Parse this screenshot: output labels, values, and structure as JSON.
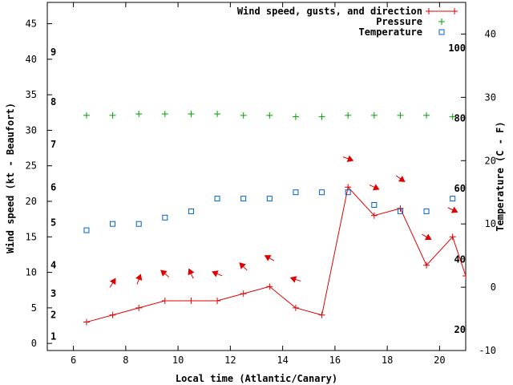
{
  "chart_data": {
    "type": "line",
    "xlabel": "Local time (Atlantic/Canary)",
    "ylabel_left": "Wind speed (kt - Beaufort)",
    "ylabel_right": "Temperature (C - F)",
    "xlim": [
      5,
      21
    ],
    "ylim_left": [
      -1,
      48
    ],
    "ylim_right": [
      -10,
      45
    ],
    "x_ticks": [
      6,
      8,
      10,
      12,
      14,
      16,
      18,
      20
    ],
    "y_left_ticks": [
      0,
      5,
      10,
      15,
      20,
      25,
      30,
      35,
      40,
      45
    ],
    "y_right_ticks": [
      -10,
      0,
      10,
      20,
      30,
      40
    ],
    "beaufort_labels": [
      {
        "label": "1",
        "kt": 1
      },
      {
        "label": "2",
        "kt": 4
      },
      {
        "label": "3",
        "kt": 7
      },
      {
        "label": "4",
        "kt": 11
      },
      {
        "label": "5",
        "kt": 17
      },
      {
        "label": "6",
        "kt": 22
      },
      {
        "label": "7",
        "kt": 28
      },
      {
        "label": "8",
        "kt": 34
      },
      {
        "label": "9",
        "kt": 41
      }
    ],
    "fahrenheit_labels": [
      {
        "label": "20",
        "celsius": -6.7
      },
      {
        "label": "40",
        "celsius": 4.4
      },
      {
        "label": "60",
        "celsius": 15.6
      },
      {
        "label": "80",
        "celsius": 26.7
      },
      {
        "label": "100",
        "celsius": 37.8
      }
    ],
    "legend_position": "top-right",
    "series": [
      {
        "name": "Wind speed, gusts, and direction",
        "axis": "left",
        "color": "#e00000",
        "marker": "plus",
        "x": [
          6.5,
          7.5,
          8.5,
          9.5,
          10.5,
          11.5,
          12.5,
          13.5,
          14.5,
          15.5,
          16.5,
          17.5,
          18.5,
          19.5,
          20.5,
          21.0
        ],
        "values": [
          3,
          4,
          5,
          6,
          6,
          6,
          7,
          8,
          5,
          4,
          22,
          18,
          19,
          11,
          15,
          9.5
        ]
      },
      {
        "name": "Pressure",
        "axis": "left",
        "color": "#00a000",
        "marker": "plus",
        "x": [
          6.5,
          7.5,
          8.5,
          9.5,
          10.5,
          11.5,
          12.5,
          13.5,
          14.5,
          15.5,
          16.5,
          17.5,
          18.5,
          19.5,
          20.5
        ],
        "values": [
          32.1,
          32.1,
          32.3,
          32.3,
          32.3,
          32.3,
          32.1,
          32.1,
          31.9,
          31.9,
          32.1,
          32.1,
          32.1,
          32.1,
          31.9
        ]
      },
      {
        "name": "Temperature",
        "axis": "right",
        "color": "#0060d0",
        "marker": "square",
        "x": [
          6.5,
          7.5,
          8.5,
          9.5,
          10.5,
          11.5,
          12.5,
          13.5,
          14.5,
          15.5,
          16.5,
          17.5,
          18.5,
          19.5,
          20.5
        ],
        "values": [
          9,
          10,
          10,
          11,
          12,
          14,
          14,
          14,
          15,
          15,
          15,
          13,
          12,
          12,
          14
        ]
      }
    ],
    "wind_direction_arrows": [
      {
        "x": 7.5,
        "kt": 8.5,
        "to_angle_deg": 58
      },
      {
        "x": 8.5,
        "kt": 9.0,
        "to_angle_deg": 70
      },
      {
        "x": 9.5,
        "kt": 9.8,
        "to_angle_deg": 140
      },
      {
        "x": 10.5,
        "kt": 9.8,
        "to_angle_deg": 115
      },
      {
        "x": 11.5,
        "kt": 9.8,
        "to_angle_deg": 158
      },
      {
        "x": 12.5,
        "kt": 10.8,
        "to_angle_deg": 135
      },
      {
        "x": 13.5,
        "kt": 12.0,
        "to_angle_deg": 150
      },
      {
        "x": 14.5,
        "kt": 9.0,
        "to_angle_deg": 162
      },
      {
        "x": 16.5,
        "kt": 26.0,
        "to_angle_deg": -20
      },
      {
        "x": 17.5,
        "kt": 22.0,
        "to_angle_deg": -25
      },
      {
        "x": 18.5,
        "kt": 23.2,
        "to_angle_deg": -35
      },
      {
        "x": 19.5,
        "kt": 15.0,
        "to_angle_deg": -30
      },
      {
        "x": 20.5,
        "kt": 18.8,
        "to_angle_deg": -25
      }
    ]
  }
}
